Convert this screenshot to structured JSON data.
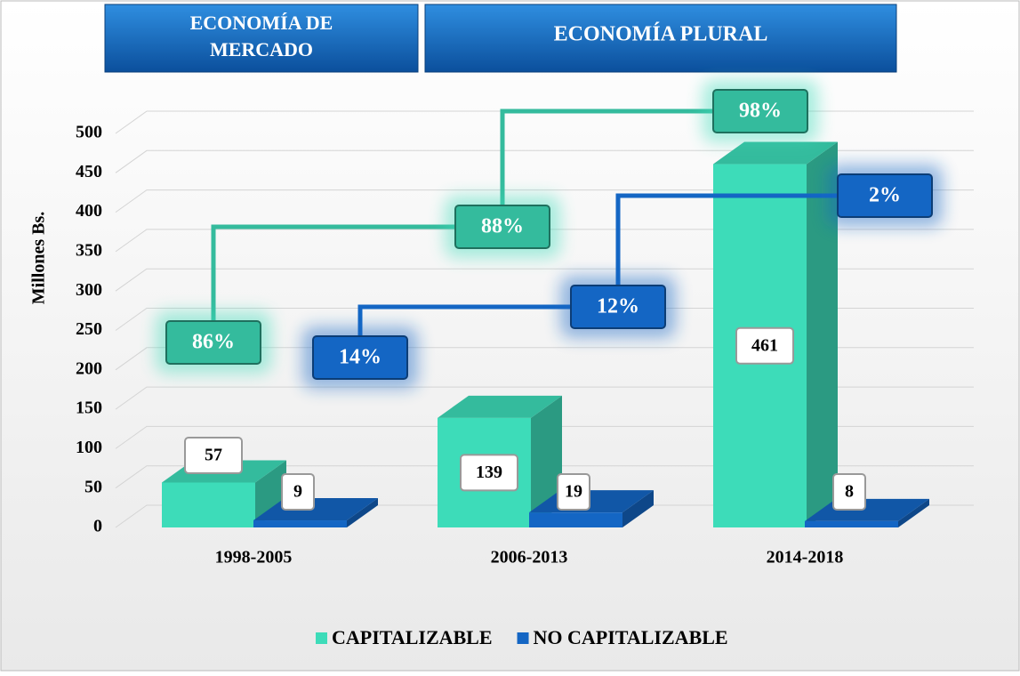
{
  "chart_data": {
    "type": "bar3d",
    "headers": [
      "ECONOMÍA DE MERCADO",
      "ECONOMÍA PLURAL"
    ],
    "y_label": "Millones Bs.",
    "categories": [
      "1998-2005",
      "2006-2013",
      "2014-2018"
    ],
    "series": [
      {
        "name": "CAPITALIZABLE",
        "color": "#3ddcb9",
        "values": [
          57,
          139,
          461
        ],
        "shares": [
          86,
          88,
          98
        ],
        "share_labels": [
          "86%",
          "88%",
          "98%"
        ]
      },
      {
        "name": "NO CAPITALIZABLE",
        "color": "#1466c4",
        "values": [
          9,
          19,
          8
        ],
        "shares": [
          14,
          12,
          2
        ],
        "share_labels": [
          "14%",
          "12%",
          "2%"
        ]
      }
    ],
    "ylim": [
      0,
      500
    ],
    "yticks": [
      0,
      50,
      100,
      150,
      200,
      250,
      300,
      350,
      400,
      450,
      500
    ],
    "grid": true,
    "legend": "bottom"
  }
}
